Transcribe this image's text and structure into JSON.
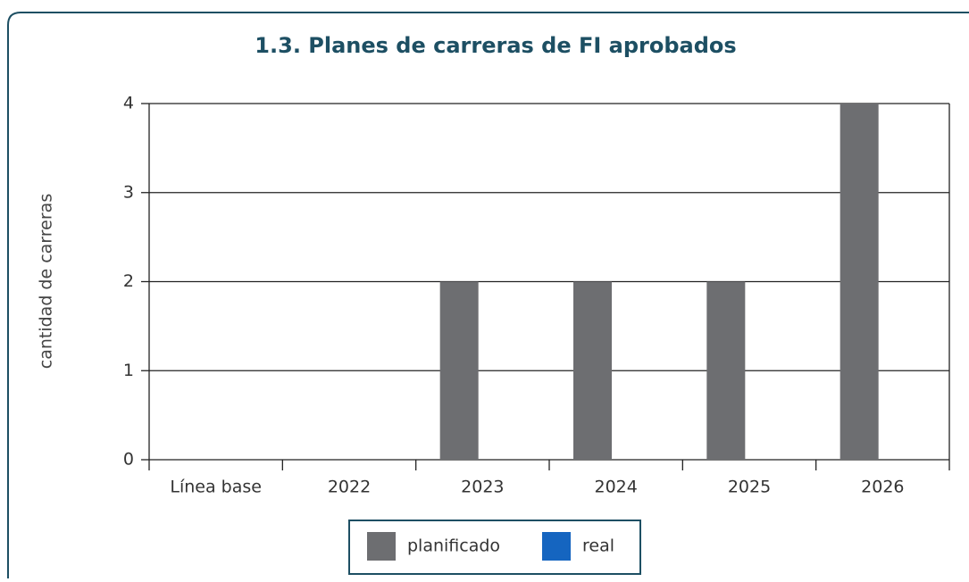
{
  "chart_data": {
    "type": "bar",
    "title": "1.3. Planes de carreras de FI aprobados",
    "y_label": "cantidad de carreras",
    "categories": [
      "Línea base",
      "2022",
      "2023",
      "2024",
      "2025",
      "2026"
    ],
    "series": [
      {
        "name": "planificado",
        "color": "#6d6e71",
        "values": [
          0,
          0,
          2,
          2,
          2,
          4
        ]
      },
      {
        "name": "real",
        "color": "#1565c0",
        "values": [
          0,
          0,
          0,
          0,
          0,
          0
        ]
      }
    ],
    "ylim": [
      0,
      4
    ],
    "yticks": [
      0,
      1,
      2,
      3,
      4
    ],
    "grid": true
  }
}
